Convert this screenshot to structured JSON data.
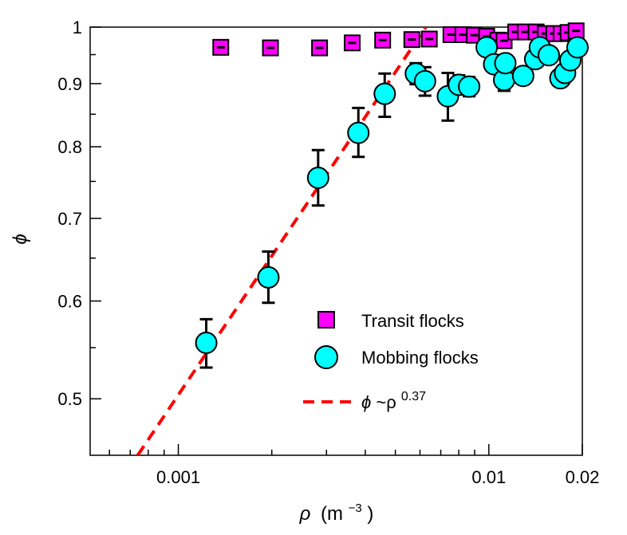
{
  "chart_data": {
    "type": "scatter",
    "x_scale": "log",
    "y_scale": "log",
    "xlim": [
      0.00052,
      0.02
    ],
    "ylim": [
      0.45,
      1.0
    ],
    "xlabel": {
      "symbol": "ρ",
      "unit": "(m",
      "exp": "−3",
      "close": ")"
    },
    "ylabel": "ϕ",
    "x_ticks": [
      {
        "value": 0.001,
        "label": "0.001"
      },
      {
        "value": 0.01,
        "label": "0.01"
      },
      {
        "value": 0.02,
        "label": "0.02"
      }
    ],
    "x_minor_ticks": [
      0.0006,
      0.0007,
      0.0008,
      0.0009,
      0.002,
      0.003,
      0.004,
      0.005,
      0.006,
      0.007,
      0.008,
      0.009
    ],
    "y_ticks": [
      {
        "value": 0.5,
        "label": "0.5"
      },
      {
        "value": 0.6,
        "label": "0.6"
      },
      {
        "value": 0.7,
        "label": "0.7"
      },
      {
        "value": 0.8,
        "label": "0.8"
      },
      {
        "value": 0.9,
        "label": "0.9"
      },
      {
        "value": 1.0,
        "label": "1"
      }
    ],
    "y_minor_ticks": [
      0.55,
      0.65,
      0.75,
      0.85,
      0.95
    ],
    "grid": false,
    "legend_position": "bottom-right",
    "series": [
      {
        "name": "Transit flocks",
        "marker": "square",
        "color": "#ff00ff",
        "points": [
          {
            "x": 0.00137,
            "y": 0.963
          },
          {
            "x": 0.00198,
            "y": 0.962
          },
          {
            "x": 0.00285,
            "y": 0.962
          },
          {
            "x": 0.00363,
            "y": 0.971
          },
          {
            "x": 0.00455,
            "y": 0.976
          },
          {
            "x": 0.00565,
            "y": 0.977
          },
          {
            "x": 0.00643,
            "y": 0.978
          },
          {
            "x": 0.00755,
            "y": 0.986
          },
          {
            "x": 0.00825,
            "y": 0.986
          },
          {
            "x": 0.00898,
            "y": 0.985
          },
          {
            "x": 0.00984,
            "y": 0.983
          },
          {
            "x": 0.0107,
            "y": 0.976
          },
          {
            "x": 0.0112,
            "y": 0.975
          },
          {
            "x": 0.0122,
            "y": 0.991
          },
          {
            "x": 0.0131,
            "y": 0.991
          },
          {
            "x": 0.0142,
            "y": 0.991
          },
          {
            "x": 0.0152,
            "y": 0.988
          },
          {
            "x": 0.0162,
            "y": 0.988
          },
          {
            "x": 0.0171,
            "y": 0.988
          },
          {
            "x": 0.018,
            "y": 0.99
          },
          {
            "x": 0.0191,
            "y": 0.993
          }
        ]
      },
      {
        "name": "Mobbing flocks",
        "marker": "circle",
        "color": "#00ffff",
        "points": [
          {
            "x": 0.00123,
            "y": 0.555,
            "lo": 0.53,
            "hi": 0.58
          },
          {
            "x": 0.00195,
            "y": 0.627,
            "lo": 0.598,
            "hi": 0.658
          },
          {
            "x": 0.00282,
            "y": 0.755,
            "lo": 0.717,
            "hi": 0.795
          },
          {
            "x": 0.0038,
            "y": 0.821,
            "lo": 0.785,
            "hi": 0.86
          },
          {
            "x": 0.00462,
            "y": 0.883,
            "lo": 0.846,
            "hi": 0.917
          },
          {
            "x": 0.00582,
            "y": 0.917,
            "lo": 0.899,
            "hi": 0.935
          },
          {
            "x": 0.00623,
            "y": 0.904,
            "lo": 0.88,
            "hi": 0.928
          },
          {
            "x": 0.00738,
            "y": 0.879,
            "lo": 0.84,
            "hi": 0.918
          },
          {
            "x": 0.00801,
            "y": 0.898,
            "lo": 0.882,
            "hi": 0.914
          },
          {
            "x": 0.00864,
            "y": 0.895,
            "lo": 0.879,
            "hi": 0.911
          },
          {
            "x": 0.00984,
            "y": 0.963
          },
          {
            "x": 0.0104,
            "y": 0.933
          },
          {
            "x": 0.0112,
            "y": 0.906,
            "lo": 0.888,
            "hi": 0.924
          },
          {
            "x": 0.0113,
            "y": 0.935
          },
          {
            "x": 0.0129,
            "y": 0.913
          },
          {
            "x": 0.0141,
            "y": 0.942
          },
          {
            "x": 0.0146,
            "y": 0.963
          },
          {
            "x": 0.0156,
            "y": 0.949
          },
          {
            "x": 0.017,
            "y": 0.909
          },
          {
            "x": 0.0176,
            "y": 0.918
          },
          {
            "x": 0.0183,
            "y": 0.94
          },
          {
            "x": 0.0193,
            "y": 0.963
          }
        ]
      }
    ],
    "fit_line": {
      "name": "ϕ ~ρ^0.37",
      "label_symbol": "ϕ",
      "label_base": " ~ρ",
      "label_exp": "0.37",
      "color": "#ff0000",
      "style": "dashed",
      "exponent": 0.37,
      "points": [
        {
          "x": 0.00074,
          "y": 0.45
        },
        {
          "x": 0.00626,
          "y": 1.0
        }
      ]
    }
  }
}
